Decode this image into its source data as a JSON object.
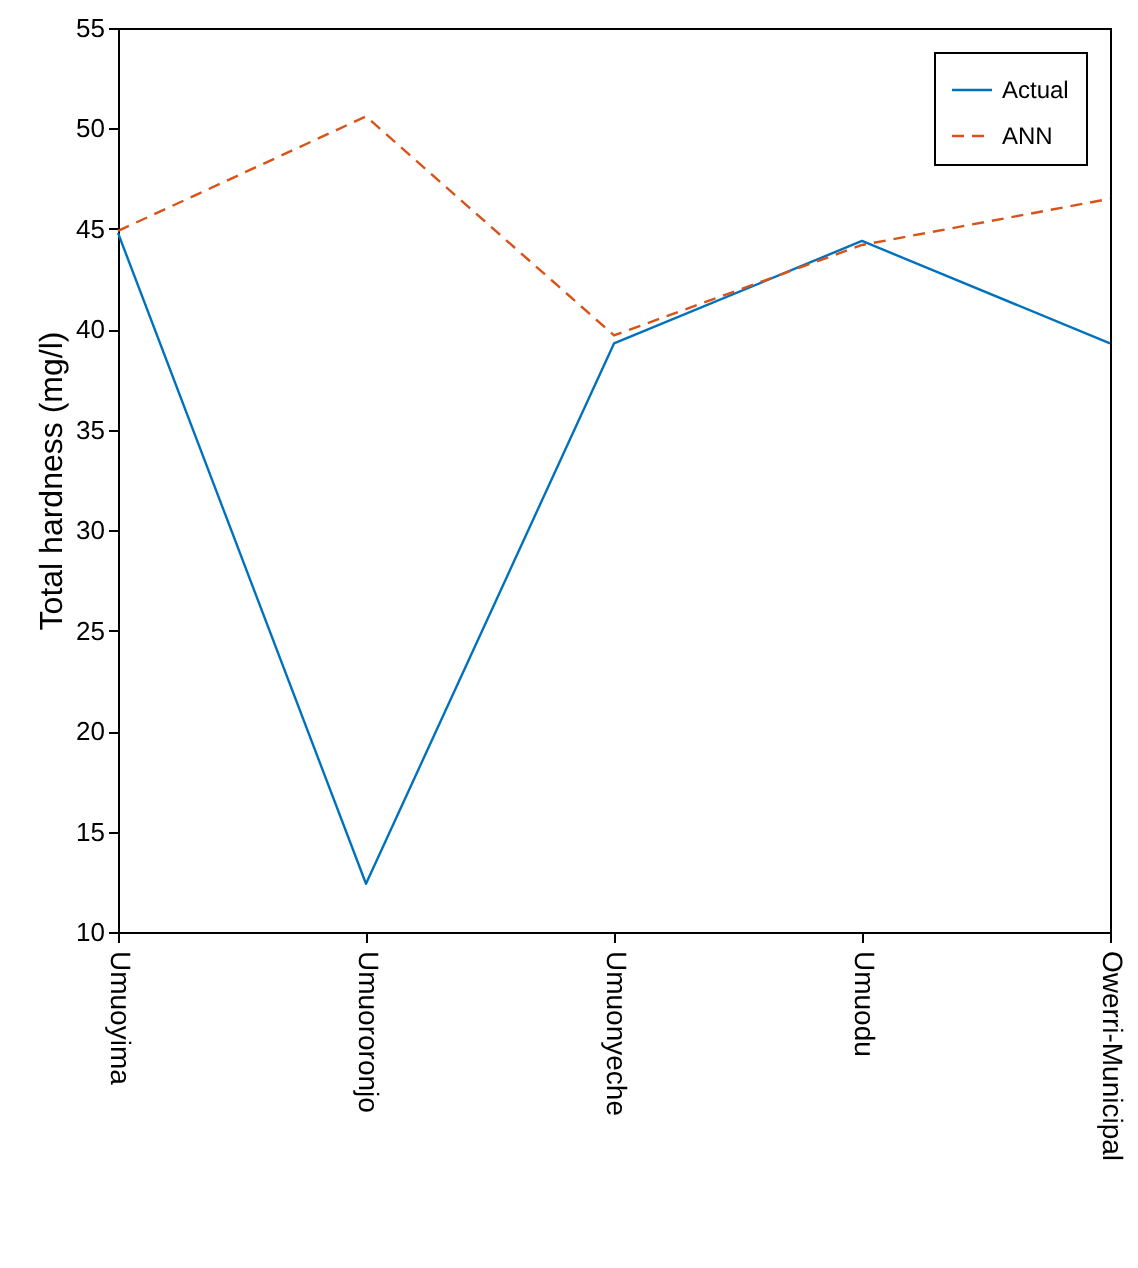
{
  "chart_data": {
    "type": "line",
    "ylabel": "Total hardness (mg/l)",
    "categories": [
      "Umuoyima",
      "Umuororonjo",
      "Umuonyeche",
      "Umuodu",
      "Owerri-Municipal"
    ],
    "series": [
      {
        "name": "Actual",
        "color": "#0072bd",
        "line_style": "solid",
        "values": [
          44.8,
          12.4,
          39.3,
          44.4,
          39.3
        ]
      },
      {
        "name": "ANN",
        "color": "#d95319",
        "line_style": "dashed",
        "values": [
          44.9,
          50.6,
          39.7,
          44.2,
          46.5
        ]
      }
    ],
    "ylim": [
      10,
      55
    ],
    "yticks": [
      10,
      15,
      20,
      25,
      30,
      35,
      40,
      45,
      50,
      55
    ],
    "grid": false,
    "legend": "top right",
    "marker": "none"
  }
}
